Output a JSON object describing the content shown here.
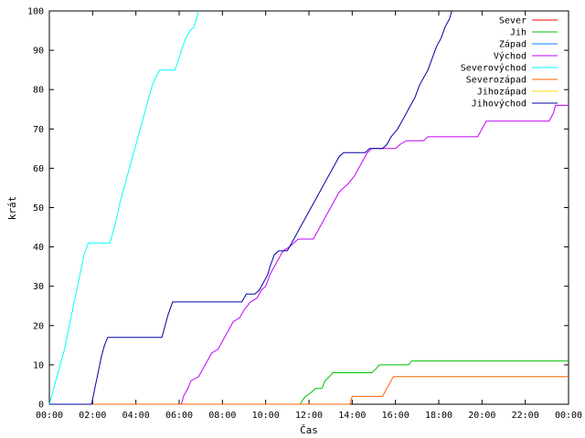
{
  "chart_data": {
    "type": "line",
    "title": "",
    "xlabel": "Čas",
    "ylabel": "krát",
    "xlim": [
      0,
      24
    ],
    "ylim": [
      0,
      100
    ],
    "x_ticks": [
      {
        "value": 0,
        "label": "00:00"
      },
      {
        "value": 2,
        "label": "02:00"
      },
      {
        "value": 4,
        "label": "04:00"
      },
      {
        "value": 6,
        "label": "06:00"
      },
      {
        "value": 8,
        "label": "08:00"
      },
      {
        "value": 10,
        "label": "10:00"
      },
      {
        "value": 12,
        "label": "12:00"
      },
      {
        "value": 14,
        "label": "14:00"
      },
      {
        "value": 16,
        "label": "16:00"
      },
      {
        "value": 18,
        "label": "18:00"
      },
      {
        "value": 20,
        "label": "20:00"
      },
      {
        "value": 22,
        "label": "22:00"
      },
      {
        "value": 24,
        "label": "00:00"
      }
    ],
    "y_ticks": [
      0,
      10,
      20,
      30,
      40,
      50,
      60,
      70,
      80,
      90,
      100
    ],
    "grid": false,
    "legend_position": "top-right",
    "series": [
      {
        "name": "Sever",
        "color": "#ff0000",
        "points": []
      },
      {
        "name": "Jih",
        "color": "#00c000",
        "points": [
          [
            0,
            0
          ],
          [
            11.6,
            0
          ],
          [
            11.7,
            1
          ],
          [
            11.85,
            2
          ],
          [
            12.1,
            3
          ],
          [
            12.3,
            4
          ],
          [
            12.6,
            4
          ],
          [
            12.75,
            6
          ],
          [
            12.95,
            7
          ],
          [
            13.1,
            8
          ],
          [
            14.9,
            8
          ],
          [
            15.1,
            9
          ],
          [
            15.25,
            10
          ],
          [
            16.6,
            10
          ],
          [
            16.75,
            11
          ],
          [
            24,
            11
          ]
        ]
      },
      {
        "name": "Západ",
        "color": "#0080ff",
        "points": []
      },
      {
        "name": "Východ",
        "color": "#c000ff",
        "points": [
          [
            0,
            0
          ],
          [
            6.1,
            0
          ],
          [
            6.2,
            2
          ],
          [
            6.4,
            4
          ],
          [
            6.55,
            6
          ],
          [
            6.9,
            7
          ],
          [
            7.1,
            9
          ],
          [
            7.3,
            11
          ],
          [
            7.5,
            13
          ],
          [
            7.8,
            14
          ],
          [
            8,
            16
          ],
          [
            8.2,
            18
          ],
          [
            8.5,
            21
          ],
          [
            8.8,
            22
          ],
          [
            9,
            24
          ],
          [
            9.3,
            26
          ],
          [
            9.6,
            27
          ],
          [
            9.8,
            29
          ],
          [
            10,
            30
          ],
          [
            10.2,
            33
          ],
          [
            10.4,
            35
          ],
          [
            10.6,
            37
          ],
          [
            10.8,
            39
          ],
          [
            11.1,
            40
          ],
          [
            11.3,
            41
          ],
          [
            11.5,
            42
          ],
          [
            12.2,
            42
          ],
          [
            12.4,
            44
          ],
          [
            12.6,
            46
          ],
          [
            12.8,
            48
          ],
          [
            13,
            50
          ],
          [
            13.2,
            52
          ],
          [
            13.4,
            54
          ],
          [
            13.6,
            55
          ],
          [
            13.8,
            56
          ],
          [
            14.1,
            58
          ],
          [
            14.3,
            60
          ],
          [
            14.5,
            62
          ],
          [
            14.7,
            64
          ],
          [
            14.9,
            65
          ],
          [
            16,
            65
          ],
          [
            16.2,
            66
          ],
          [
            16.5,
            67
          ],
          [
            17.3,
            67
          ],
          [
            17.5,
            68
          ],
          [
            19.8,
            68
          ],
          [
            20,
            70
          ],
          [
            20.2,
            72
          ],
          [
            23.1,
            72
          ],
          [
            23.3,
            74
          ],
          [
            23.4,
            76
          ],
          [
            24,
            76
          ]
        ]
      },
      {
        "name": "Severovýchod",
        "color": "#00ffff",
        "points": [
          [
            0,
            0
          ],
          [
            0.1,
            2
          ],
          [
            0.25,
            5
          ],
          [
            0.4,
            8
          ],
          [
            0.55,
            11
          ],
          [
            0.7,
            14
          ],
          [
            0.85,
            18
          ],
          [
            1,
            22
          ],
          [
            1.15,
            26
          ],
          [
            1.3,
            30
          ],
          [
            1.45,
            34
          ],
          [
            1.6,
            38
          ],
          [
            1.8,
            41
          ],
          [
            2.8,
            41
          ],
          [
            2.95,
            44
          ],
          [
            3.1,
            47
          ],
          [
            3.25,
            51
          ],
          [
            3.4,
            54
          ],
          [
            3.55,
            57
          ],
          [
            3.7,
            60
          ],
          [
            3.85,
            63
          ],
          [
            4,
            66
          ],
          [
            4.15,
            69
          ],
          [
            4.3,
            72
          ],
          [
            4.45,
            75
          ],
          [
            4.6,
            78
          ],
          [
            4.75,
            81
          ],
          [
            4.9,
            83
          ],
          [
            5.1,
            85
          ],
          [
            5.8,
            85
          ],
          [
            6,
            88
          ],
          [
            6.1,
            90
          ],
          [
            6.3,
            93
          ],
          [
            6.5,
            95
          ],
          [
            6.7,
            96
          ],
          [
            6.8,
            98
          ],
          [
            6.9,
            100
          ]
        ]
      },
      {
        "name": "Severozápad",
        "color": "#ff6000",
        "points": [
          [
            0,
            0
          ],
          [
            13.9,
            0
          ],
          [
            14,
            2
          ],
          [
            15.4,
            2
          ],
          [
            15.5,
            3
          ],
          [
            15.6,
            4
          ],
          [
            15.8,
            6
          ],
          [
            15.9,
            7
          ],
          [
            24,
            7
          ]
        ]
      },
      {
        "name": "Jihozápad",
        "color": "#ffd700",
        "points": []
      },
      {
        "name": "Jihovýchod",
        "color": "#0000a0",
        "points": [
          [
            0,
            0
          ],
          [
            1.95,
            0
          ],
          [
            2.1,
            4
          ],
          [
            2.25,
            8
          ],
          [
            2.4,
            12
          ],
          [
            2.55,
            15
          ],
          [
            2.7,
            17
          ],
          [
            5.2,
            17
          ],
          [
            5.35,
            20
          ],
          [
            5.5,
            23
          ],
          [
            5.7,
            26
          ],
          [
            8.9,
            26
          ],
          [
            9,
            27
          ],
          [
            9.1,
            28
          ],
          [
            9.5,
            28
          ],
          [
            9.7,
            29
          ],
          [
            9.9,
            31
          ],
          [
            10.1,
            33
          ],
          [
            10.2,
            35
          ],
          [
            10.4,
            38
          ],
          [
            10.6,
            39
          ],
          [
            11,
            39
          ],
          [
            11.2,
            41
          ],
          [
            11.4,
            43
          ],
          [
            11.6,
            45
          ],
          [
            11.8,
            47
          ],
          [
            12,
            49
          ],
          [
            12.2,
            51
          ],
          [
            12.4,
            53
          ],
          [
            12.6,
            55
          ],
          [
            12.8,
            57
          ],
          [
            13,
            59
          ],
          [
            13.2,
            61
          ],
          [
            13.4,
            63
          ],
          [
            13.6,
            64
          ],
          [
            14.6,
            64
          ],
          [
            14.8,
            65
          ],
          [
            15.4,
            65
          ],
          [
            15.6,
            66
          ],
          [
            15.8,
            68
          ],
          [
            16.1,
            70
          ],
          [
            16.3,
            72
          ],
          [
            16.5,
            74
          ],
          [
            16.7,
            76
          ],
          [
            16.9,
            78
          ],
          [
            17.1,
            81
          ],
          [
            17.3,
            83
          ],
          [
            17.5,
            85
          ],
          [
            17.7,
            88
          ],
          [
            17.9,
            91
          ],
          [
            18.1,
            93
          ],
          [
            18.3,
            96
          ],
          [
            18.5,
            98
          ],
          [
            18.6,
            100
          ]
        ]
      }
    ]
  }
}
